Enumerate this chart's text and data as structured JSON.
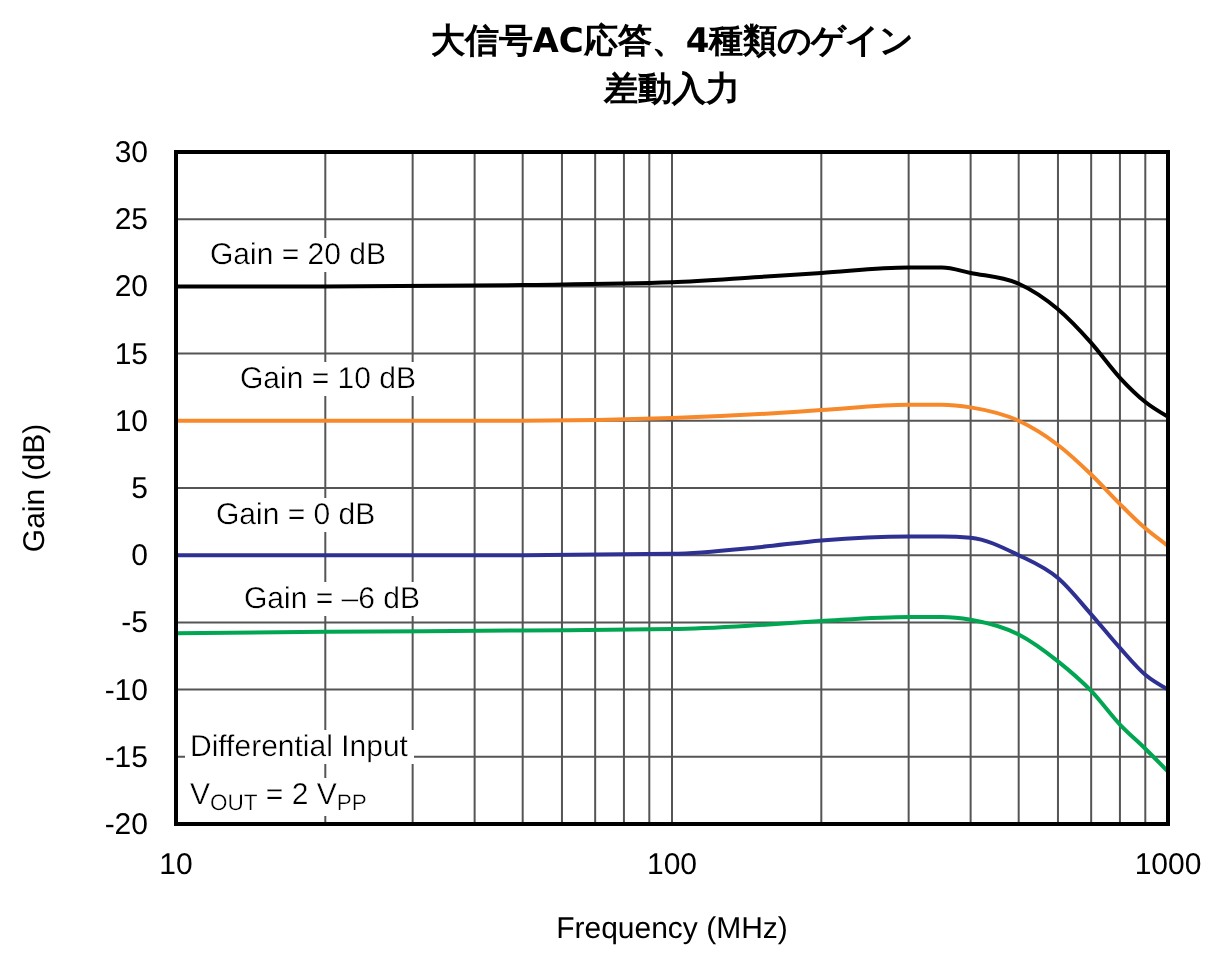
{
  "chart_data": {
    "type": "line",
    "title": "大信号AC応答、4種類のゲイン",
    "subtitle": "差動入力",
    "xlabel": "Frequency (MHz)",
    "ylabel": "Gain (dB)",
    "log": "x",
    "grid": true,
    "line_style": "solid",
    "marker": "none",
    "xlim": [
      10,
      1000
    ],
    "ylim": [
      -20,
      30
    ],
    "xticks": [
      10,
      {
        "value": 20,
        "label": null
      },
      {
        "value": 30,
        "label": null
      },
      {
        "value": 40,
        "label": null
      },
      {
        "value": 50,
        "label": null
      },
      {
        "value": 60,
        "label": null
      },
      {
        "value": 70,
        "label": null
      },
      {
        "value": 80,
        "label": null
      },
      {
        "value": 90,
        "label": null
      },
      100,
      {
        "value": 200,
        "label": null
      },
      {
        "value": 300,
        "label": null
      },
      {
        "value": 400,
        "label": null
      },
      {
        "value": 500,
        "label": null
      },
      {
        "value": 600,
        "label": null
      },
      {
        "value": 700,
        "label": null
      },
      {
        "value": 800,
        "label": null
      },
      {
        "value": 900,
        "label": null
      },
      1000
    ],
    "yticks": [
      -20,
      -15,
      -10,
      -5,
      0,
      5,
      10,
      15,
      20,
      25,
      30
    ],
    "x": [
      10,
      20,
      50,
      100,
      150,
      200,
      300,
      350,
      400,
      500,
      600,
      700,
      800,
      900,
      1000
    ],
    "series": [
      {
        "color": "#000000",
        "values": [
          20,
          20,
          20.1,
          20.3,
          20.7,
          21,
          21.4,
          21.4,
          21,
          20.2,
          18.3,
          15.8,
          13.2,
          11.4,
          10.3
        ]
      },
      {
        "color": "#f7892b",
        "values": [
          10,
          10,
          10,
          10.2,
          10.5,
          10.8,
          11.2,
          11.2,
          11,
          10,
          8.2,
          6,
          3.8,
          2,
          0.7
        ]
      },
      {
        "color": "#2e3192",
        "values": [
          0,
          0,
          0,
          0.1,
          0.6,
          1.1,
          1.4,
          1.4,
          1.3,
          0,
          -1.7,
          -4.4,
          -6.9,
          -8.9,
          -10
        ]
      },
      {
        "color": "#00a651",
        "values": [
          -5.8,
          -5.7,
          -5.6,
          -5.5,
          -5.2,
          -4.9,
          -4.6,
          -4.6,
          -4.8,
          -5.9,
          -7.9,
          -10.1,
          -12.6,
          -14.4,
          -16.1
        ]
      }
    ],
    "annotations": [
      "Gain = 20 dB",
      "Gain = 10 dB",
      "Gain = 0 dB",
      "Gain = –6 dB",
      "Differential Input",
      "V$_{OUT}$ = 2 V$_{PP}$"
    ]
  }
}
